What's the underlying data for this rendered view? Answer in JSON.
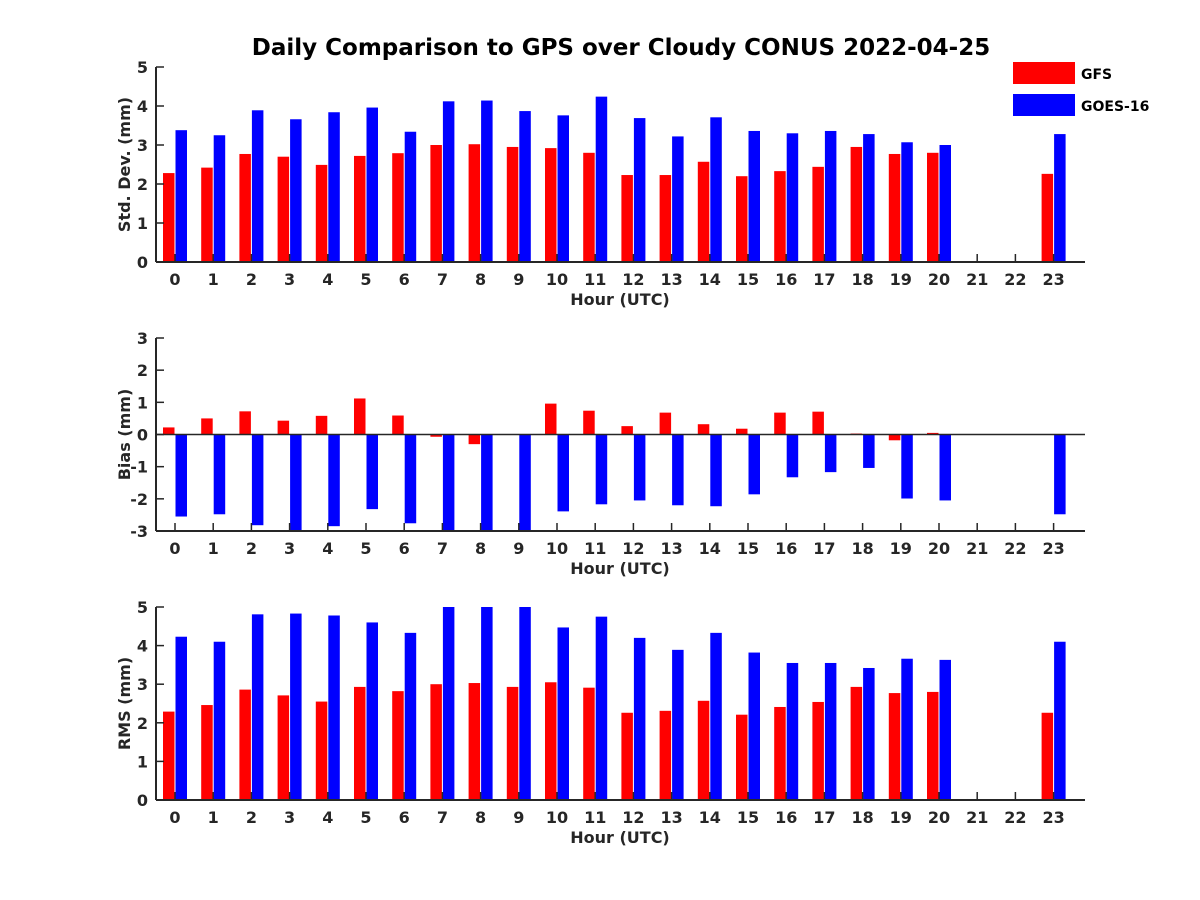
{
  "title": "Daily Comparison to GPS over Cloudy CONUS 2022-04-25",
  "legend": {
    "placement": "top-right",
    "items": [
      {
        "label": "GFS",
        "color": "#ff0000"
      },
      {
        "label": "GOES-16",
        "color": "#0000ff"
      }
    ]
  },
  "chart_data": [
    {
      "type": "bar",
      "xlabel": "Hour (UTC)",
      "ylabel": "Std. Dev. (mm)",
      "ylim": [
        0,
        5
      ],
      "yticks": [
        0,
        1,
        2,
        3,
        4,
        5
      ],
      "categories": [
        "0",
        "1",
        "2",
        "3",
        "4",
        "5",
        "6",
        "7",
        "8",
        "9",
        "10",
        "11",
        "12",
        "13",
        "14",
        "15",
        "16",
        "17",
        "18",
        "19",
        "20",
        "21",
        "22",
        "23"
      ],
      "series": [
        {
          "name": "GFS",
          "color": "#ff0000",
          "values": [
            2.28,
            2.42,
            2.77,
            2.7,
            2.49,
            2.72,
            2.79,
            3.0,
            3.02,
            2.95,
            2.92,
            2.8,
            2.23,
            2.23,
            2.57,
            2.2,
            2.33,
            2.44,
            2.95,
            2.77,
            2.8,
            null,
            null,
            2.26
          ]
        },
        {
          "name": "GOES-16",
          "color": "#0000ff",
          "values": [
            3.38,
            3.25,
            3.89,
            3.66,
            3.84,
            3.96,
            3.34,
            4.12,
            4.14,
            3.87,
            3.76,
            4.24,
            3.69,
            3.22,
            3.71,
            3.36,
            3.3,
            3.36,
            3.28,
            3.07,
            3.0,
            null,
            null,
            3.28
          ]
        }
      ]
    },
    {
      "type": "bar",
      "xlabel": "Hour (UTC)",
      "ylabel": "Bias (mm)",
      "ylim": [
        -3,
        3
      ],
      "yticks": [
        -3,
        -2,
        -1,
        0,
        1,
        2,
        3
      ],
      "categories": [
        "0",
        "1",
        "2",
        "3",
        "4",
        "5",
        "6",
        "7",
        "8",
        "9",
        "10",
        "11",
        "12",
        "13",
        "14",
        "15",
        "16",
        "17",
        "18",
        "19",
        "20",
        "21",
        "22",
        "23"
      ],
      "series": [
        {
          "name": "GFS",
          "color": "#ff0000",
          "values": [
            0.22,
            0.5,
            0.72,
            0.43,
            0.58,
            1.12,
            0.59,
            -0.07,
            -0.3,
            0.0,
            0.96,
            0.74,
            0.26,
            0.68,
            0.32,
            0.18,
            0.68,
            0.71,
            0.03,
            -0.18,
            0.05,
            null,
            null,
            0.0
          ]
        },
        {
          "name": "GOES-16",
          "color": "#0000ff",
          "values": [
            -2.55,
            -2.48,
            -2.82,
            -3.0,
            -2.85,
            -2.32,
            -2.76,
            -3.0,
            -3.0,
            -3.0,
            -2.39,
            -2.17,
            -2.05,
            -2.2,
            -2.23,
            -1.86,
            -1.33,
            -1.17,
            -1.04,
            -1.99,
            -2.05,
            null,
            null,
            -2.48
          ]
        }
      ]
    },
    {
      "type": "bar",
      "xlabel": "Hour (UTC)",
      "ylabel": "RMS (mm)",
      "ylim": [
        0,
        5
      ],
      "yticks": [
        0,
        1,
        2,
        3,
        4,
        5
      ],
      "categories": [
        "0",
        "1",
        "2",
        "3",
        "4",
        "5",
        "6",
        "7",
        "8",
        "9",
        "10",
        "11",
        "12",
        "13",
        "14",
        "15",
        "16",
        "17",
        "18",
        "19",
        "20",
        "21",
        "22",
        "23"
      ],
      "series": [
        {
          "name": "GFS",
          "color": "#ff0000",
          "values": [
            2.29,
            2.46,
            2.86,
            2.71,
            2.55,
            2.93,
            2.82,
            3.0,
            3.03,
            2.93,
            3.05,
            2.91,
            2.26,
            2.31,
            2.57,
            2.21,
            2.41,
            2.54,
            2.93,
            2.77,
            2.8,
            null,
            null,
            2.26
          ]
        },
        {
          "name": "GOES-16",
          "color": "#0000ff",
          "values": [
            4.23,
            4.1,
            4.81,
            4.83,
            4.78,
            4.6,
            4.33,
            5.0,
            5.0,
            5.0,
            4.47,
            4.75,
            4.2,
            3.89,
            4.33,
            3.82,
            3.55,
            3.55,
            3.42,
            3.66,
            3.63,
            null,
            null,
            4.1
          ]
        }
      ]
    }
  ]
}
